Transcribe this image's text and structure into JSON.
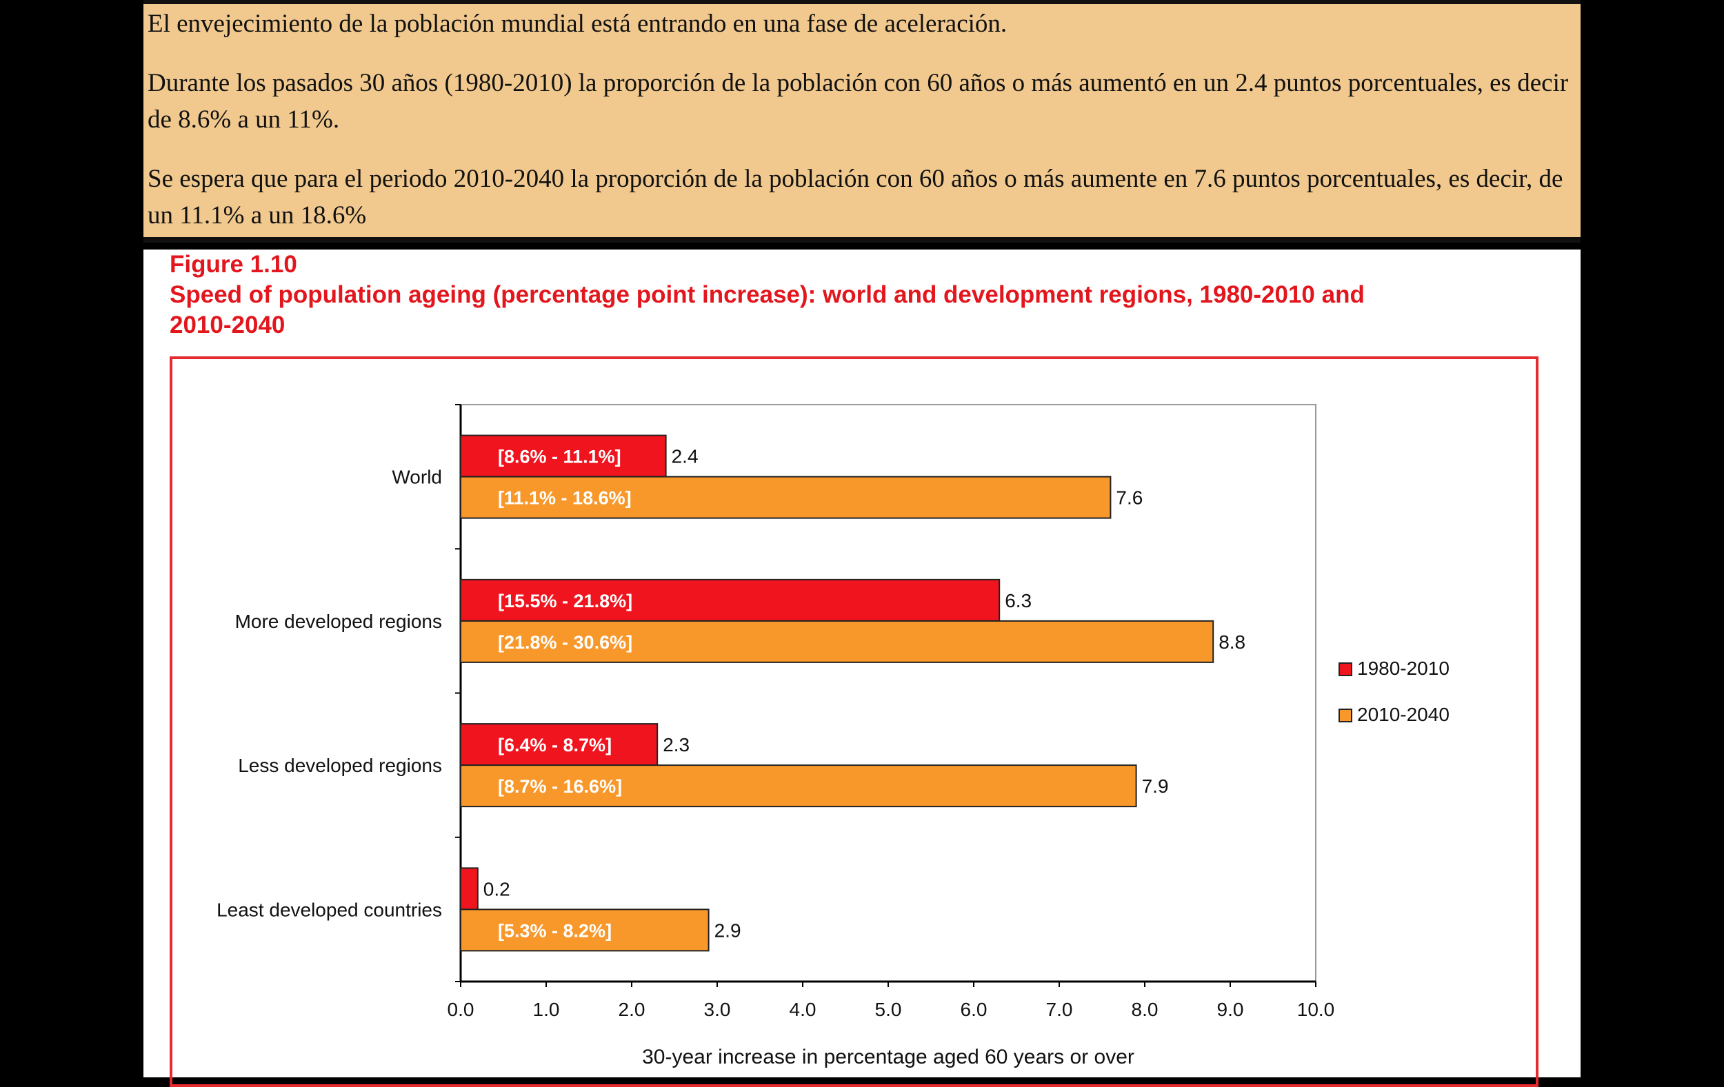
{
  "note": {
    "paragraphs": [
      "El envejecimiento de la población mundial está entrando en una fase de aceleración.",
      "Durante los pasados 30 años (1980-2010) la proporción de la población con 60 años o más aumentó en un 2.4 puntos porcentuales, es decir de 8.6% a un 11%.",
      "Se espera que para el periodo 2010-2040 la proporción de la población con 60 años o más aumente en 7.6 puntos porcentuales, es decir, de un 11.1% a un 18.6%"
    ]
  },
  "figure": {
    "number": "Figure 1.10",
    "title_line1": "Speed of population ageing (percentage point increase): world and development regions, 1980-2010 and",
    "title_line2": "2010-2040"
  },
  "chart_data": {
    "type": "bar",
    "orientation": "horizontal",
    "categories": [
      "World",
      "More developed regions",
      "Less developed regions",
      "Least developed countries"
    ],
    "series": [
      {
        "name": "1980-2010",
        "color": "#f0141e",
        "values": [
          2.4,
          6.3,
          2.3,
          0.2
        ],
        "ranges": [
          "[8.6% - 11.1%]",
          "[15.5% - 21.8%]",
          "[6.4% - 8.7%]",
          ""
        ]
      },
      {
        "name": "2010-2040",
        "color": "#f8982a",
        "values": [
          7.6,
          8.8,
          7.9,
          2.9
        ],
        "ranges": [
          "[11.1% - 18.6%]",
          "[21.8% - 30.6%]",
          "[8.7% - 16.6%]",
          "[5.3% - 8.2%]"
        ]
      }
    ],
    "xlim": [
      0,
      10
    ],
    "xticks": [
      "0.0",
      "1.0",
      "2.0",
      "3.0",
      "4.0",
      "5.0",
      "6.0",
      "7.0",
      "8.0",
      "9.0",
      "10.0"
    ],
    "xlabel": "30-year increase in percentage aged 60 years or over",
    "legend_position": "right",
    "grid": false
  }
}
